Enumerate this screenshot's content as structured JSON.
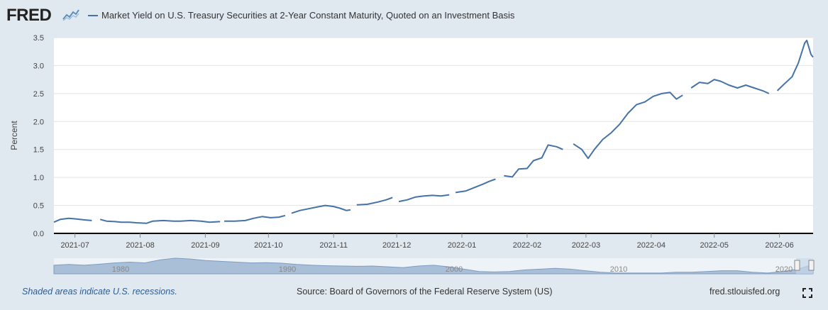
{
  "header": {
    "logo_text": "FRED",
    "logo_icon": "chart-line-icon",
    "title": "Market Yield on U.S. Treasury Securities at 2-Year Constant Maturity, Quoted on an Investment Basis"
  },
  "footer": {
    "note": "Shaded areas indicate U.S. recessions.",
    "source": "Source: Board of Governors of the Federal Reserve System (US)",
    "site": "fred.stlouisfed.org",
    "fullscreen_icon": "fullscreen-icon"
  },
  "navigator": {
    "labels": [
      "1980",
      "1990",
      "2000",
      "2010",
      "2020"
    ]
  },
  "chart_data": {
    "type": "line",
    "title": "Market Yield on U.S. Treasury Securities at 2-Year Constant Maturity, Quoted on an Investment Basis",
    "xlabel": "",
    "ylabel": "Percent",
    "ylim": [
      0,
      3.5
    ],
    "yticks": [
      "0.0",
      "0.5",
      "1.0",
      "1.5",
      "2.0",
      "2.5",
      "3.0",
      "3.5"
    ],
    "xlim": [
      "2021-06-21",
      "2022-06-17"
    ],
    "xticks": [
      "2021-07",
      "2021-08",
      "2021-09",
      "2021-10",
      "2021-11",
      "2021-12",
      "2022-01",
      "2022-02",
      "2022-03",
      "2022-04",
      "2022-05",
      "2022-06"
    ],
    "grid": true,
    "line_color": "#4572a7",
    "series": [
      {
        "name": "Market Yield on U.S. Treasury Securities at 2-Year Constant Maturity, Quoted on an Investment Basis",
        "segments": [
          [
            [
              "2021-06-21",
              0.2
            ],
            [
              "2021-06-24",
              0.25
            ],
            [
              "2021-06-28",
              0.27
            ],
            [
              "2021-07-01",
              0.26
            ],
            [
              "2021-07-06",
              0.24
            ],
            [
              "2021-07-09",
              0.23
            ]
          ],
          [
            [
              "2021-07-13",
              0.25
            ],
            [
              "2021-07-16",
              0.22
            ],
            [
              "2021-07-20",
              0.21
            ],
            [
              "2021-07-23",
              0.2
            ],
            [
              "2021-07-27",
              0.2
            ],
            [
              "2021-07-30",
              0.19
            ],
            [
              "2021-08-04",
              0.18
            ],
            [
              "2021-08-07",
              0.22
            ],
            [
              "2021-08-12",
              0.23
            ],
            [
              "2021-08-17",
              0.22
            ],
            [
              "2021-08-20",
              0.22
            ],
            [
              "2021-08-25",
              0.23
            ],
            [
              "2021-08-30",
              0.22
            ],
            [
              "2021-09-03",
              0.2
            ],
            [
              "2021-09-08",
              0.21
            ]
          ],
          [
            [
              "2021-09-10",
              0.22
            ],
            [
              "2021-09-15",
              0.22
            ],
            [
              "2021-09-20",
              0.23
            ],
            [
              "2021-09-24",
              0.27
            ],
            [
              "2021-09-28",
              0.3
            ],
            [
              "2021-10-02",
              0.28
            ],
            [
              "2021-10-06",
              0.29
            ],
            [
              "2021-10-09",
              0.32
            ]
          ],
          [
            [
              "2021-10-12",
              0.36
            ],
            [
              "2021-10-16",
              0.41
            ],
            [
              "2021-10-20",
              0.44
            ],
            [
              "2021-10-24",
              0.47
            ],
            [
              "2021-10-28",
              0.5
            ],
            [
              "2021-11-01",
              0.48
            ],
            [
              "2021-11-04",
              0.45
            ],
            [
              "2021-11-07",
              0.41
            ],
            [
              "2021-11-09",
              0.42
            ]
          ],
          [
            [
              "2021-11-12",
              0.51
            ],
            [
              "2021-11-17",
              0.52
            ],
            [
              "2021-11-22",
              0.56
            ],
            [
              "2021-11-26",
              0.6
            ],
            [
              "2021-11-29",
              0.64
            ]
          ],
          [
            [
              "2021-12-02",
              0.57
            ],
            [
              "2021-12-06",
              0.6
            ],
            [
              "2021-12-10",
              0.65
            ],
            [
              "2021-12-14",
              0.67
            ],
            [
              "2021-12-18",
              0.68
            ],
            [
              "2021-12-22",
              0.67
            ],
            [
              "2021-12-26",
              0.69
            ]
          ],
          [
            [
              "2021-12-29",
              0.73
            ],
            [
              "2022-01-03",
              0.76
            ],
            [
              "2022-01-07",
              0.82
            ],
            [
              "2022-01-11",
              0.88
            ],
            [
              "2022-01-14",
              0.93
            ],
            [
              "2022-01-17",
              0.97
            ]
          ],
          [
            [
              "2022-01-21",
              1.03
            ],
            [
              "2022-01-25",
              1.01
            ],
            [
              "2022-01-28",
              1.15
            ],
            [
              "2022-02-01",
              1.16
            ],
            [
              "2022-02-04",
              1.3
            ],
            [
              "2022-02-08",
              1.35
            ],
            [
              "2022-02-11",
              1.58
            ],
            [
              "2022-02-15",
              1.55
            ],
            [
              "2022-02-18",
              1.5
            ]
          ],
          [
            [
              "2022-02-23",
              1.6
            ],
            [
              "2022-02-27",
              1.5
            ],
            [
              "2022-03-02",
              1.34
            ],
            [
              "2022-03-05",
              1.5
            ],
            [
              "2022-03-09",
              1.68
            ],
            [
              "2022-03-13",
              1.8
            ],
            [
              "2022-03-17",
              1.95
            ],
            [
              "2022-03-21",
              2.15
            ],
            [
              "2022-03-25",
              2.3
            ],
            [
              "2022-03-29",
              2.35
            ],
            [
              "2022-04-02",
              2.45
            ],
            [
              "2022-04-06",
              2.5
            ],
            [
              "2022-04-10",
              2.52
            ],
            [
              "2022-04-13",
              2.4
            ],
            [
              "2022-04-16",
              2.47
            ]
          ],
          [
            [
              "2022-04-20",
              2.6
            ],
            [
              "2022-04-24",
              2.7
            ],
            [
              "2022-04-28",
              2.68
            ],
            [
              "2022-05-01",
              2.75
            ],
            [
              "2022-05-04",
              2.72
            ],
            [
              "2022-05-08",
              2.65
            ],
            [
              "2022-05-12",
              2.6
            ],
            [
              "2022-05-16",
              2.65
            ],
            [
              "2022-05-20",
              2.6
            ],
            [
              "2022-05-24",
              2.55
            ],
            [
              "2022-05-27",
              2.5
            ]
          ],
          [
            [
              "2022-05-31",
              2.55
            ],
            [
              "2022-06-03",
              2.66
            ],
            [
              "2022-06-07",
              2.8
            ],
            [
              "2022-06-10",
              3.05
            ],
            [
              "2022-06-13",
              3.4
            ],
            [
              "2022-06-14",
              3.45
            ],
            [
              "2022-06-16",
              3.2
            ],
            [
              "2022-06-17",
              3.15
            ]
          ]
        ]
      }
    ]
  }
}
